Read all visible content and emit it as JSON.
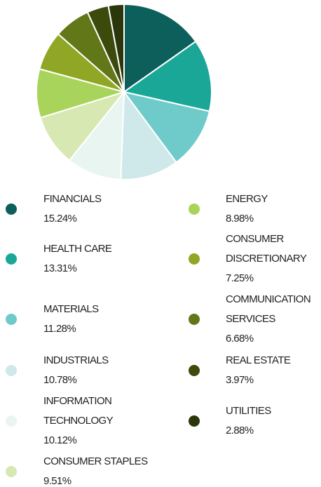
{
  "chart_data": {
    "type": "pie",
    "categories": [
      "FINANCIALS",
      "HEALTH CARE",
      "MATERIALS",
      "INDUSTRIALS",
      "INFORMATION TECHNOLOGY",
      "CONSUMER STAPLES",
      "ENERGY",
      "CONSUMER DISCRETIONARY",
      "COMMUNICATION SERVICES",
      "REAL ESTATE",
      "UTILITIES"
    ],
    "values": [
      15.24,
      13.31,
      11.28,
      10.78,
      10.12,
      9.51,
      8.98,
      7.25,
      6.68,
      3.97,
      2.88
    ],
    "value_labels": [
      "15.24%",
      "13.31%",
      "11.28%",
      "10.78%",
      "10.12%",
      "9.51%",
      "8.98%",
      "7.25%",
      "6.68%",
      "3.97%",
      "2.88%"
    ],
    "colors": [
      "#0d5f5b",
      "#1aa797",
      "#6fcaca",
      "#cfe9ea",
      "#e9f5f1",
      "#d7e8b2",
      "#a9d45b",
      "#8fa725",
      "#617718",
      "#3c4a0c",
      "#2b370a"
    ]
  }
}
